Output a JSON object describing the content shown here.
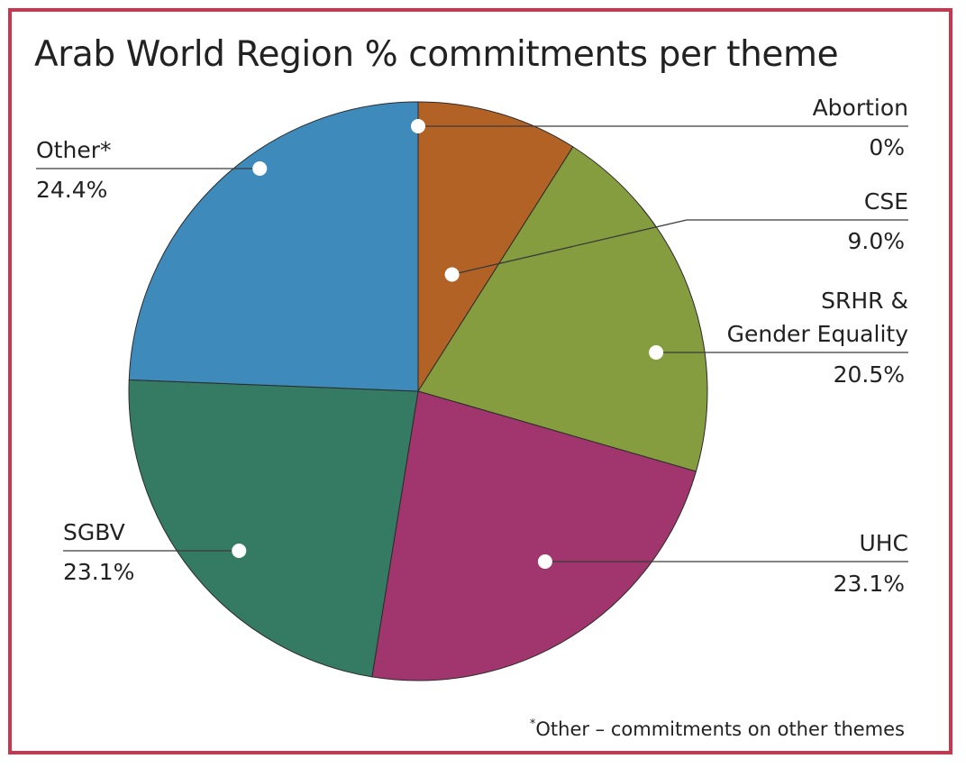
{
  "chart_data": {
    "type": "pie",
    "title": "Arab World Region % commitments per theme",
    "slices": [
      {
        "name": "Abortion",
        "label": "Abortion",
        "value": 0,
        "display": "0%",
        "color": "#b36226"
      },
      {
        "name": "CSE",
        "label": "CSE",
        "value": 9.0,
        "display": "9.0%",
        "color": "#b36226"
      },
      {
        "name": "SRHR & Gender Equality",
        "label": "SRHR & Gender Equality",
        "value": 20.5,
        "display": "20.5%",
        "color": "#869d3f"
      },
      {
        "name": "UHC",
        "label": "UHC",
        "value": 23.1,
        "display": "23.1%",
        "color": "#a1356e"
      },
      {
        "name": "SGBV",
        "label": "SGBV",
        "value": 23.1,
        "display": "23.1%",
        "color": "#357b63"
      },
      {
        "name": "Other*",
        "label": "Other*",
        "value": 24.4,
        "display": "24.4%",
        "color": "#3e8bbb"
      }
    ],
    "footnote_marker": "*",
    "footnote_text": "Other – commitments on other themes",
    "accent_border_color": "#c8374f"
  }
}
